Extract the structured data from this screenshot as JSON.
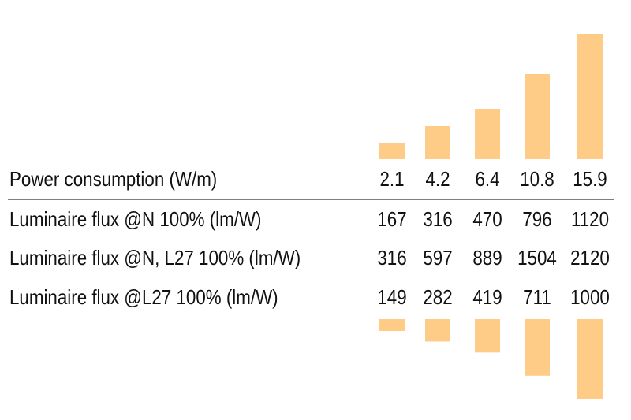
{
  "table": {
    "header": {
      "label": "Power consumption (W/m)",
      "values": [
        2.1,
        4.2,
        6.4,
        10.8,
        15.9
      ]
    },
    "rows": [
      {
        "label": "Luminaire flux @N 100% (lm/W)",
        "values": [
          167,
          316,
          470,
          796,
          1120
        ]
      },
      {
        "label": "Luminaire flux @N, L27 100% (lm/W)",
        "values": [
          316,
          597,
          889,
          1504,
          2120
        ]
      },
      {
        "label": "Luminaire flux @L27 100% (lm/W)",
        "values": [
          149,
          282,
          419,
          711,
          1000
        ]
      }
    ],
    "bar_color": "#ffcc88"
  }
}
